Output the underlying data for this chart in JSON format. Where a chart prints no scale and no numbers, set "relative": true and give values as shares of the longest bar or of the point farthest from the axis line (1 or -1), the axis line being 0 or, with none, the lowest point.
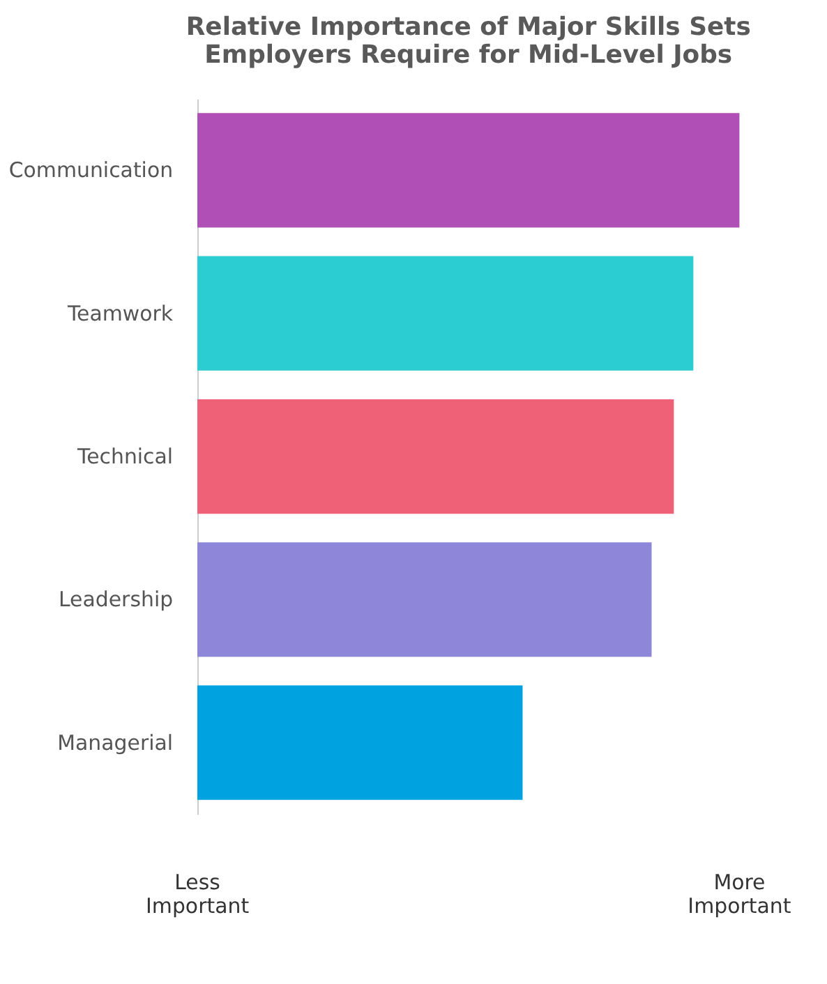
{
  "chart_data": {
    "type": "bar",
    "orientation": "horizontal",
    "relative": true,
    "title": [
      "Relative Importance of Major Skills Sets",
      "Employers Require for Mid-Level Jobs"
    ],
    "categories": [
      "Communication",
      "Teamwork",
      "Technical",
      "Leadership",
      "Managerial"
    ],
    "values": [
      1,
      0.915,
      0.879,
      0.838,
      0.6
    ],
    "colors": [
      "#b04fb5",
      "#2bcdd2",
      "#ef6177",
      "#8d86d9",
      "#00a3e0"
    ],
    "annotations": [
      "Less\nImportant",
      "More\nImportant"
    ],
    "grid": false
  }
}
